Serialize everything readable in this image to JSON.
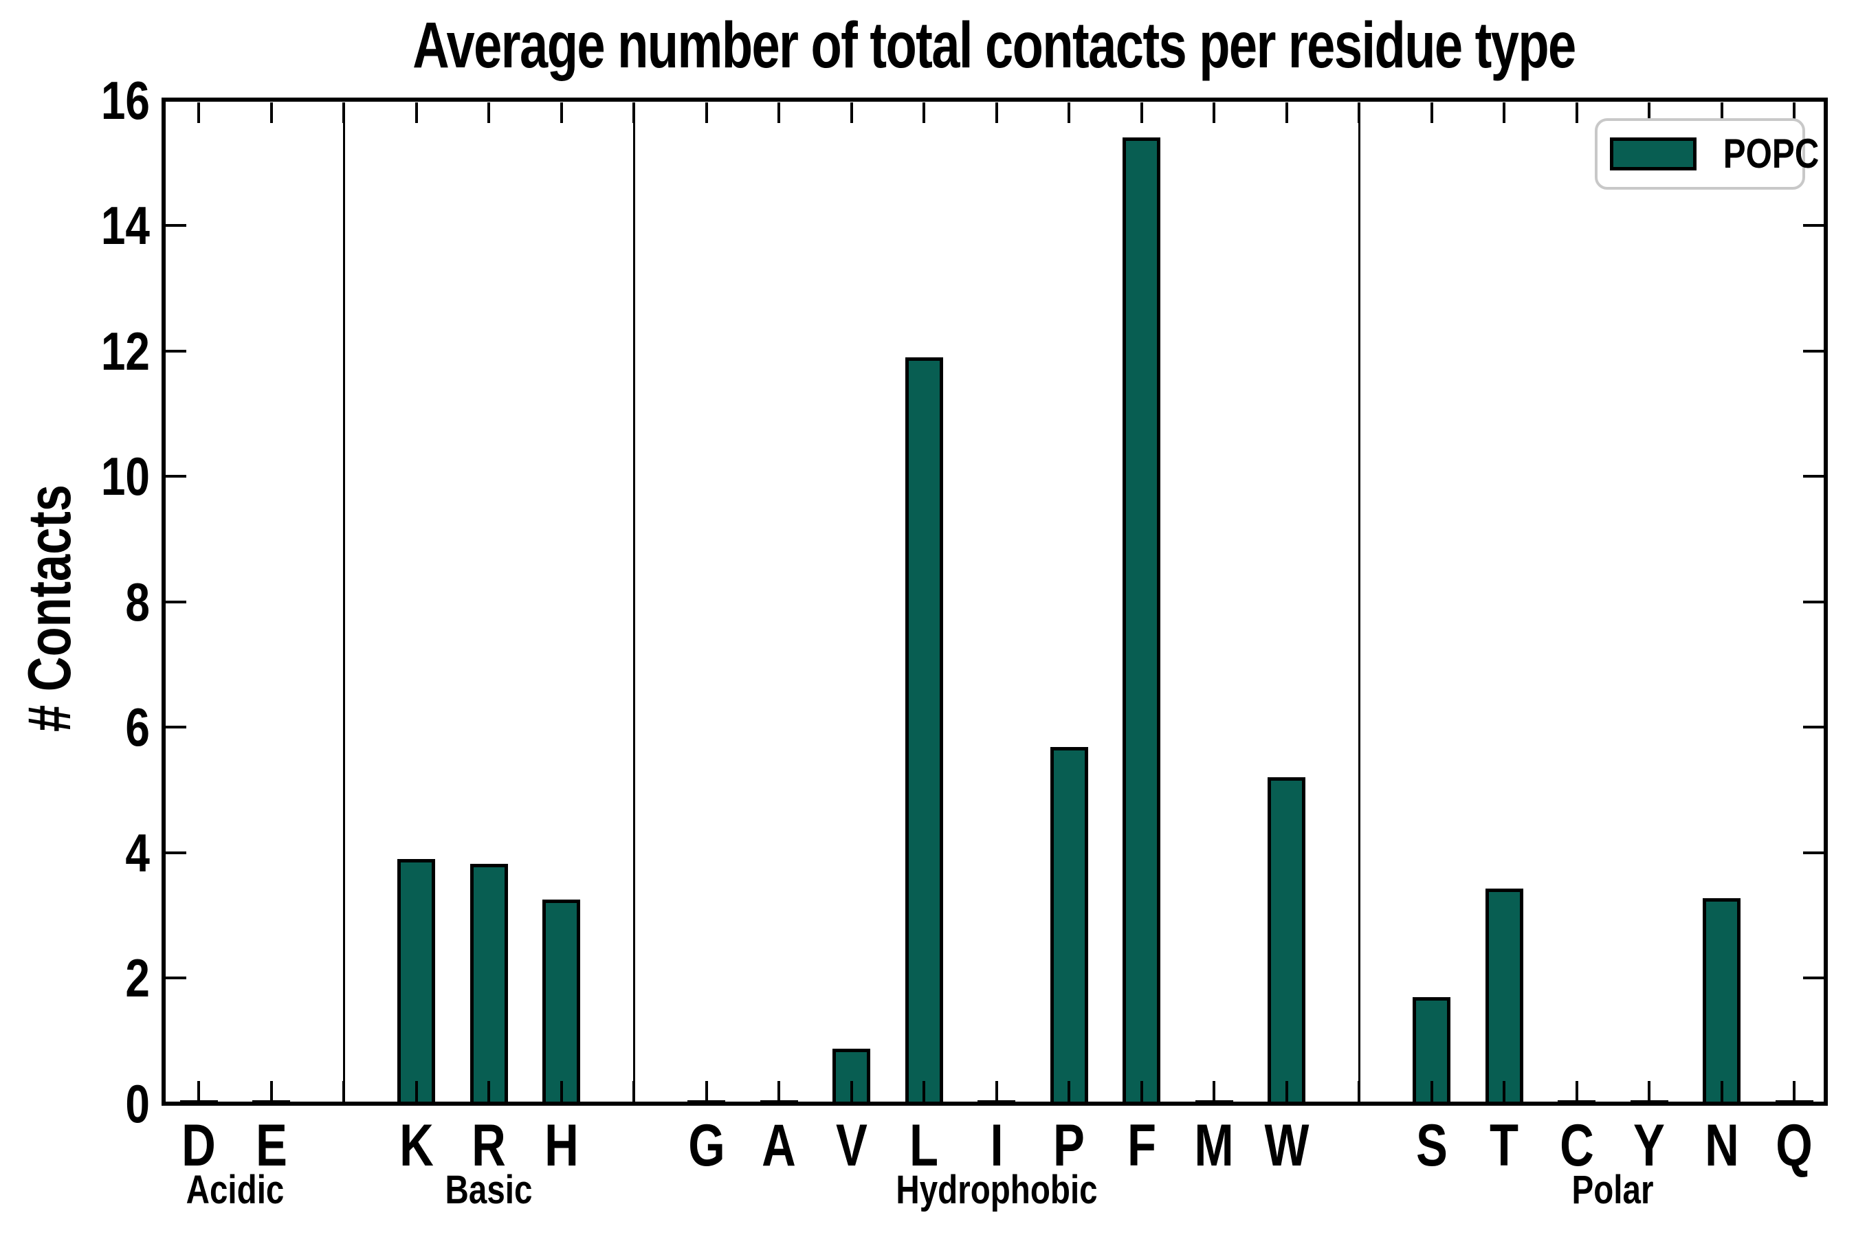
{
  "colors": {
    "bar_fill": "#085e52",
    "bar_edge": "#000000",
    "axis": "#000000",
    "legend_border": "#c8c8c8",
    "background": "#ffffff"
  },
  "chart_data": {
    "type": "bar",
    "title": "Average number of total contacts per residue type",
    "xlabel": "",
    "ylabel": "# Contacts",
    "ylim": [
      0,
      16
    ],
    "yticks": [
      0,
      2,
      4,
      6,
      8,
      10,
      12,
      14,
      16
    ],
    "grid": false,
    "legend": {
      "entries": [
        "POPC"
      ],
      "position": "upper right"
    },
    "series_name": "POPC",
    "groups": [
      {
        "label": "Acidic",
        "categories": [
          "D",
          "E"
        ],
        "values": [
          0.02,
          0.02
        ]
      },
      {
        "label": "Basic",
        "categories": [
          "K",
          "R",
          "H"
        ],
        "values": [
          3.9,
          3.82,
          3.25
        ]
      },
      {
        "label": "Hydrophobic",
        "categories": [
          "G",
          "A",
          "V",
          "L",
          "I",
          "P",
          "F",
          "M",
          "W"
        ],
        "values": [
          0.02,
          0.02,
          0.87,
          11.9,
          0.02,
          5.68,
          15.4,
          0.02,
          5.2
        ]
      },
      {
        "label": "Polar",
        "categories": [
          "S",
          "T",
          "C",
          "Y",
          "N",
          "Q"
        ],
        "values": [
          1.69,
          3.43,
          0.02,
          0.02,
          3.27,
          0.02
        ]
      }
    ]
  }
}
